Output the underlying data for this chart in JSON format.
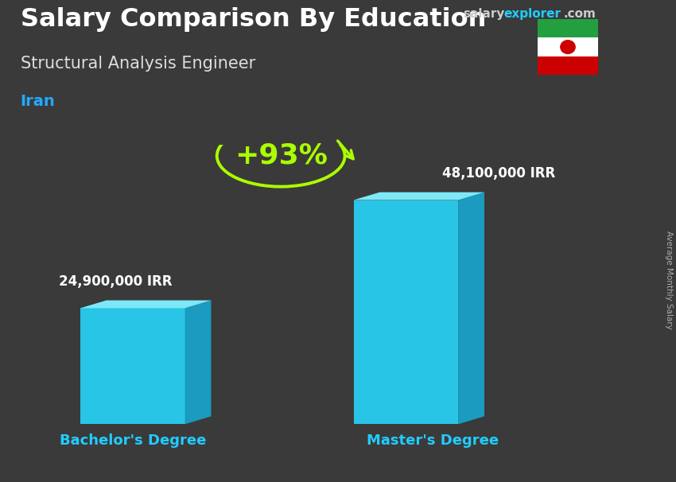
{
  "title_main": "Salary Comparison By Education",
  "title_sub": "Structural Analysis Engineer",
  "title_country": "Iran",
  "bar_labels": [
    "Bachelor's Degree",
    "Master's Degree"
  ],
  "bar_values": [
    24900000,
    48100000
  ],
  "bar_value_labels": [
    "24,900,000 IRR",
    "48,100,000 IRR"
  ],
  "pct_change": "+93%",
  "bar_color_front": "#29c5e6",
  "bar_color_top": "#7de8f7",
  "bar_color_side": "#1a9bbf",
  "bg_color": "#3a3a3a",
  "title_color": "#ffffff",
  "subtitle_color": "#dddddd",
  "country_color": "#22aaff",
  "value_label_color": "#ffffff",
  "pct_color": "#aaff00",
  "xlabel_color": "#22ccff",
  "side_label": "Average Monthly Salary",
  "brand_salary_color": "#cccccc",
  "brand_explorer_color": "#22ccff",
  "ylim_max": 60000000,
  "figsize": [
    8.5,
    6.06
  ],
  "dpi": 100,
  "flag_green": "#239f40",
  "flag_white": "#ffffff",
  "flag_red": "#cc0000"
}
